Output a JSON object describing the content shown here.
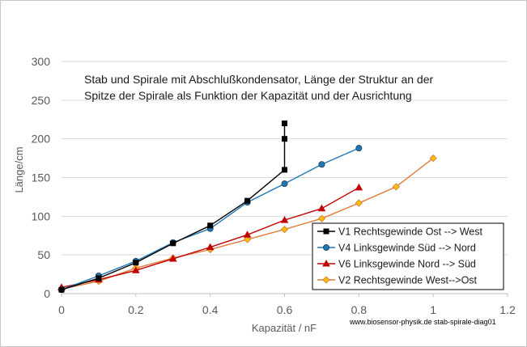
{
  "chart_data": {
    "type": "line",
    "title_lines": [
      "Stab und Spirale mit Abschlußkondensator, Länge der Struktur an der",
      "Spitze der Spirale  als Funktion der Kapazität und der Ausrichtung"
    ],
    "xlabel": "Kapazität / nF",
    "ylabel": "Länge/cm",
    "xlim": [
      0,
      1.2
    ],
    "ylim": [
      0,
      300
    ],
    "x_ticks": [
      "0",
      "0.2",
      "0.4",
      "0.6",
      "0.8",
      "1",
      "1.2"
    ],
    "y_ticks": [
      "0",
      "50",
      "100",
      "150",
      "200",
      "250",
      "300"
    ],
    "grid": "horizontal major gridlines",
    "legend_position": "bottom-right",
    "credit": "www.biosensor-physik.de  stab-spirale-diag01",
    "series": [
      {
        "name": "V1  Rechtsgewinde  Ost --> West",
        "color": "#000000",
        "marker": "square",
        "points": [
          [
            0,
            5
          ],
          [
            0.1,
            20
          ],
          [
            0.2,
            40
          ],
          [
            0.3,
            65
          ],
          [
            0.4,
            88
          ],
          [
            0.5,
            120
          ],
          [
            0.6,
            160
          ],
          [
            0.6,
            200
          ],
          [
            0.6,
            220
          ]
        ]
      },
      {
        "name": "V4  Linksgewinde Süd --> Nord",
        "color": "#1f77b4",
        "marker": "circle",
        "points": [
          [
            0,
            5
          ],
          [
            0.1,
            23
          ],
          [
            0.2,
            42
          ],
          [
            0.3,
            66
          ],
          [
            0.4,
            84
          ],
          [
            0.5,
            118
          ],
          [
            0.6,
            142
          ],
          [
            0.7,
            167
          ],
          [
            0.8,
            188
          ]
        ]
      },
      {
        "name": "V6  Linksgewinde Nord --> Süd",
        "color": "#c00000",
        "marker": "triangle",
        "points": [
          [
            0,
            8
          ],
          [
            0.1,
            18
          ],
          [
            0.2,
            30
          ],
          [
            0.3,
            45
          ],
          [
            0.4,
            60
          ],
          [
            0.5,
            76
          ],
          [
            0.6,
            95
          ],
          [
            0.7,
            110
          ],
          [
            0.8,
            137
          ]
        ]
      },
      {
        "name": "V2  Rechtsgewinde West-->Ost",
        "color": "#e07b39",
        "marker": "diamond",
        "marker_fill": "#f5c200",
        "points": [
          [
            0,
            6
          ],
          [
            0.1,
            16
          ],
          [
            0.2,
            33
          ],
          [
            0.3,
            46
          ],
          [
            0.4,
            57
          ],
          [
            0.5,
            70
          ],
          [
            0.6,
            83
          ],
          [
            0.7,
            97
          ],
          [
            0.8,
            117
          ],
          [
            0.9,
            138
          ],
          [
            1.0,
            175
          ]
        ]
      }
    ]
  }
}
